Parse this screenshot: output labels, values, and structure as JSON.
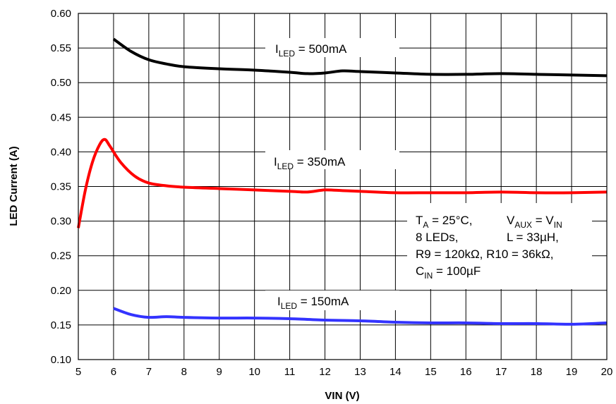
{
  "chart_data": {
    "type": "line",
    "xlabel": "VIN (V)",
    "ylabel": "LED Current  (A)",
    "xlim": [
      5,
      20
    ],
    "ylim": [
      0.1,
      0.6
    ],
    "x_ticks": [
      "5",
      "6",
      "7",
      "8",
      "9",
      "10",
      "11",
      "12",
      "13",
      "14",
      "15",
      "16",
      "17",
      "18",
      "19",
      "20"
    ],
    "y_ticks": [
      "0.10",
      "0.15",
      "0.20",
      "0.25",
      "0.30",
      "0.35",
      "0.40",
      "0.45",
      "0.50",
      "0.55",
      "0.60"
    ],
    "grid": true,
    "series": [
      {
        "name": "I_LED = 500mA",
        "color": "#000000",
        "points": [
          [
            6.0,
            0.563
          ],
          [
            6.5,
            0.545
          ],
          [
            7.0,
            0.533
          ],
          [
            7.5,
            0.527
          ],
          [
            8.0,
            0.523
          ],
          [
            9.0,
            0.52
          ],
          [
            10.0,
            0.518
          ],
          [
            11.0,
            0.515
          ],
          [
            11.5,
            0.513
          ],
          [
            12.0,
            0.514
          ],
          [
            12.5,
            0.517
          ],
          [
            13.0,
            0.516
          ],
          [
            14.0,
            0.514
          ],
          [
            15.0,
            0.512
          ],
          [
            16.0,
            0.512
          ],
          [
            17.0,
            0.513
          ],
          [
            18.0,
            0.512
          ],
          [
            19.0,
            0.511
          ],
          [
            20.0,
            0.51
          ]
        ]
      },
      {
        "name": "I_LED = 350mA",
        "color": "#ff0000",
        "points": [
          [
            5.0,
            0.29
          ],
          [
            5.2,
            0.345
          ],
          [
            5.4,
            0.385
          ],
          [
            5.6,
            0.41
          ],
          [
            5.75,
            0.418
          ],
          [
            5.9,
            0.408
          ],
          [
            6.2,
            0.385
          ],
          [
            6.6,
            0.365
          ],
          [
            7.0,
            0.355
          ],
          [
            7.5,
            0.351
          ],
          [
            8.0,
            0.349
          ],
          [
            9.0,
            0.347
          ],
          [
            10.0,
            0.345
          ],
          [
            11.0,
            0.343
          ],
          [
            11.5,
            0.342
          ],
          [
            12.0,
            0.345
          ],
          [
            12.5,
            0.344
          ],
          [
            13.0,
            0.343
          ],
          [
            14.0,
            0.341
          ],
          [
            15.0,
            0.341
          ],
          [
            16.0,
            0.341
          ],
          [
            17.0,
            0.342
          ],
          [
            18.0,
            0.341
          ],
          [
            19.0,
            0.341
          ],
          [
            20.0,
            0.342
          ]
        ]
      },
      {
        "name": "I_LED = 150mA",
        "color": "#3333ff",
        "points": [
          [
            6.0,
            0.174
          ],
          [
            6.5,
            0.165
          ],
          [
            7.0,
            0.161
          ],
          [
            7.5,
            0.162
          ],
          [
            8.0,
            0.161
          ],
          [
            9.0,
            0.16
          ],
          [
            10.0,
            0.16
          ],
          [
            11.0,
            0.159
          ],
          [
            12.0,
            0.157
          ],
          [
            13.0,
            0.156
          ],
          [
            14.0,
            0.154
          ],
          [
            15.0,
            0.153
          ],
          [
            16.0,
            0.153
          ],
          [
            17.0,
            0.152
          ],
          [
            18.0,
            0.152
          ],
          [
            19.0,
            0.151
          ],
          [
            20.0,
            0.153
          ]
        ]
      }
    ],
    "annotations": {
      "label_500": {
        "main": "I",
        "sub": "LED",
        "rest": " = 500mA"
      },
      "label_350": {
        "main": "I",
        "sub": "LED",
        "rest": " = 350mA"
      },
      "label_150": {
        "main": "I",
        "sub": "LED",
        "rest": " = 150mA"
      },
      "conditions": {
        "line1": {
          "t": "T",
          "t_sub": "A",
          "t_rest": " = 25°C,",
          "v": "V",
          "v_sub": "AUX",
          "v_mid": " = V",
          "v_sub2": "IN"
        },
        "line2": {
          "a": "8 LEDs,",
          "b": "L = 33µH,"
        },
        "line3": "R9 = 120kΩ, R10 = 36kΩ,",
        "line4": {
          "c": "C",
          "c_sub": "IN",
          "c_rest": " = 100µF"
        }
      }
    }
  }
}
